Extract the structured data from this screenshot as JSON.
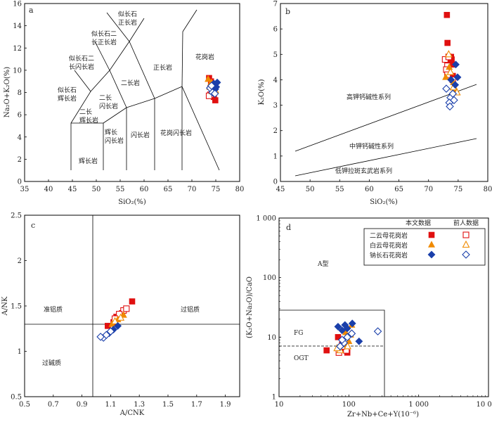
{
  "legend": {
    "col_this": "本文数据",
    "col_prev": "前人数据",
    "rows": [
      {
        "label": "二云母花岗岩",
        "color": "#e01010",
        "marker": "square"
      },
      {
        "label": "白云母花岗岩",
        "color": "#f08a00",
        "marker": "triangle"
      },
      {
        "label": "钠长石花岗岩",
        "color": "#1a3faa",
        "marker": "diamond"
      }
    ]
  },
  "colors": {
    "two_mica": "#e01010",
    "muscovite": "#f08a00",
    "albite": "#1a3faa"
  },
  "chart_data": [
    {
      "id": "a",
      "type": "scatter",
      "panel_label": "a",
      "xlabel": "SiO₂(%)",
      "ylabel": "Na₂O+K₂O(%)",
      "xlim": [
        35,
        80
      ],
      "ylim": [
        0,
        16
      ],
      "xticks": [
        35,
        40,
        45,
        50,
        55,
        60,
        65,
        70,
        75,
        80
      ],
      "yticks": [
        0,
        2,
        4,
        6,
        8,
        10,
        12,
        14,
        16
      ],
      "field_labels": [
        "似长石正长岩",
        "似长石二长正长岩",
        "似长石二长闪长岩",
        "似长石辉长岩",
        "二长辉长岩",
        "二长闪长岩",
        "二长岩",
        "正长岩",
        "花岗岩",
        "辉长岩",
        "辉长闪长岩",
        "闪长岩",
        "花岗闪长岩"
      ],
      "series": [
        {
          "name": "二云母花岗岩",
          "group": "this",
          "points": [
            [
              73.6,
              9.3
            ],
            [
              74.6,
              7.6
            ],
            [
              74.9,
              7.3
            ],
            [
              74.0,
              9.0
            ],
            [
              74.3,
              8.4
            ]
          ]
        },
        {
          "name": "二云母花岗岩",
          "group": "previous",
          "points": [
            [
              73.9,
              7.8
            ],
            [
              74.4,
              8.0
            ],
            [
              73.6,
              7.7
            ],
            [
              74.7,
              8.3
            ],
            [
              74.2,
              8.6
            ]
          ]
        },
        {
          "name": "白云母花岗岩",
          "group": "this",
          "points": [
            [
              73.4,
              9.2
            ],
            [
              74.1,
              8.9
            ],
            [
              74.6,
              8.6
            ],
            [
              73.9,
              8.8
            ]
          ]
        },
        {
          "name": "白云母花岗岩",
          "group": "previous",
          "points": [
            [
              74.3,
              8.1
            ],
            [
              74.9,
              8.2
            ],
            [
              73.8,
              8.5
            ]
          ]
        },
        {
          "name": "钠长石花岗岩",
          "group": "this",
          "points": [
            [
              74.6,
              8.8
            ],
            [
              75.1,
              8.5
            ],
            [
              74.9,
              8.3
            ],
            [
              74.4,
              8.7
            ],
            [
              75.3,
              8.9
            ]
          ]
        },
        {
          "name": "钠长石花岗岩",
          "group": "previous",
          "points": [
            [
              73.8,
              8.4
            ],
            [
              74.3,
              8.0
            ],
            [
              74.8,
              7.9
            ],
            [
              74.1,
              8.6
            ]
          ]
        }
      ]
    },
    {
      "id": "b",
      "type": "scatter",
      "panel_label": "b",
      "xlabel": "SiO₂(%)",
      "ylabel": "K₂O(%)",
      "xlim": [
        45,
        80
      ],
      "ylim": [
        0,
        7
      ],
      "xticks": [
        45,
        50,
        55,
        60,
        65,
        70,
        75,
        80
      ],
      "yticks": [
        0,
        1,
        2,
        3,
        4,
        5,
        6,
        7
      ],
      "field_labels": [
        "高钾钙碱性系列",
        "中钾钙碱性系列",
        "低钾拉斑玄武岩系列"
      ],
      "series": [
        {
          "name": "二云母花岗岩",
          "group": "this",
          "points": [
            [
              73.1,
              6.55
            ],
            [
              73.2,
              5.45
            ],
            [
              73.8,
              4.9
            ],
            [
              74.2,
              4.6
            ],
            [
              74.1,
              4.15
            ],
            [
              73.9,
              4.8
            ],
            [
              73.5,
              4.7
            ]
          ]
        },
        {
          "name": "二云母花岗岩",
          "group": "previous",
          "points": [
            [
              72.8,
              4.8
            ],
            [
              73.2,
              4.55
            ],
            [
              73.0,
              4.4
            ],
            [
              73.4,
              4.9
            ],
            [
              74.1,
              4.0
            ],
            [
              73.2,
              4.2
            ]
          ]
        },
        {
          "name": "白云母花岗岩",
          "group": "this",
          "points": [
            [
              72.9,
              4.1
            ],
            [
              73.5,
              4.5
            ],
            [
              74.2,
              3.9
            ],
            [
              74.6,
              3.6
            ]
          ]
        },
        {
          "name": "白云母花岗岩",
          "group": "previous",
          "points": [
            [
              73.4,
              5.0
            ],
            [
              73.7,
              4.3
            ],
            [
              74.2,
              3.7
            ],
            [
              74.8,
              3.5
            ]
          ]
        },
        {
          "name": "钠长石花岗岩",
          "group": "this",
          "points": [
            [
              74.6,
              4.6
            ],
            [
              74.9,
              4.1
            ],
            [
              74.5,
              3.8
            ],
            [
              73.8,
              4.0
            ]
          ]
        },
        {
          "name": "钠长石花岗岩",
          "group": "previous",
          "points": [
            [
              73.0,
              3.65
            ],
            [
              73.7,
              3.3
            ],
            [
              74.3,
              3.2
            ],
            [
              73.5,
              3.1
            ],
            [
              73.6,
              2.95
            ],
            [
              74.1,
              3.45
            ]
          ]
        }
      ]
    },
    {
      "id": "c",
      "type": "scatter",
      "panel_label": "c",
      "xlabel": "A/CNK",
      "ylabel": "A/NK",
      "xlim": [
        0.5,
        2.0
      ],
      "ylim": [
        0.5,
        2.5
      ],
      "xticks": [
        0.5,
        0.7,
        0.9,
        1.1,
        1.3,
        1.5,
        1.7,
        1.9
      ],
      "yticks": [
        0.5,
        1.0,
        1.5,
        2.0,
        2.5
      ],
      "field_labels": [
        "准铝质",
        "过铝质",
        "过碱质"
      ],
      "series": [
        {
          "name": "二云母花岗岩",
          "group": "this",
          "points": [
            [
              1.25,
              1.55
            ],
            [
              1.14,
              1.38
            ],
            [
              1.08,
              1.28
            ],
            [
              1.18,
              1.42
            ],
            [
              1.12,
              1.32
            ]
          ]
        },
        {
          "name": "二云母花岗岩",
          "group": "previous",
          "points": [
            [
              1.19,
              1.45
            ],
            [
              1.16,
              1.41
            ],
            [
              1.21,
              1.47
            ],
            [
              1.13,
              1.36
            ]
          ]
        },
        {
          "name": "白云母花岗岩",
          "group": "this",
          "points": [
            [
              1.15,
              1.35
            ],
            [
              1.19,
              1.4
            ],
            [
              1.11,
              1.3
            ]
          ]
        },
        {
          "name": "白云母花岗岩",
          "group": "previous",
          "points": [
            [
              1.17,
              1.37
            ],
            [
              1.13,
              1.33
            ]
          ]
        },
        {
          "name": "钠长石花岗岩",
          "group": "this",
          "points": [
            [
              1.12,
              1.24
            ],
            [
              1.09,
              1.2
            ],
            [
              1.15,
              1.28
            ]
          ]
        },
        {
          "name": "钠长石花岗岩",
          "group": "previous",
          "points": [
            [
              1.05,
              1.15
            ],
            [
              1.07,
              1.18
            ],
            [
              1.1,
              1.22
            ],
            [
              1.03,
              1.16
            ]
          ]
        }
      ]
    },
    {
      "id": "d",
      "type": "scatter",
      "panel_label": "d",
      "xlabel": "Zr+Nb+Ce+Y(10⁻⁶)",
      "ylabel": "(K₂O+Na₂O)/CaO",
      "xscale": "log",
      "yscale": "log",
      "xlim": [
        10,
        10000
      ],
      "ylim": [
        1,
        1000
      ],
      "xticks": [
        10,
        100,
        1000,
        10000
      ],
      "xtick_labels": [
        "10",
        "100",
        "1 000",
        "10 000"
      ],
      "yticks": [
        1,
        10,
        100,
        1000
      ],
      "ytick_labels": [
        "1",
        "10",
        "100",
        "1 000"
      ],
      "field_labels": [
        "A型",
        "FG",
        "OGT"
      ],
      "series": [
        {
          "name": "二云母花岗岩",
          "group": "this",
          "points": [
            [
              48,
              6
            ],
            [
              70,
              10
            ],
            [
              88,
              6.5
            ],
            [
              95,
              5.5
            ],
            [
              80,
              7.5
            ]
          ]
        },
        {
          "name": "二云母花岗岩",
          "group": "previous",
          "points": [
            [
              72,
              5.5
            ],
            [
              92,
              6
            ],
            [
              80,
              7
            ]
          ]
        },
        {
          "name": "白云母花岗岩",
          "group": "this",
          "points": [
            [
              100,
              8.5
            ],
            [
              90,
              12
            ],
            [
              110,
              16
            ],
            [
              85,
              7.5
            ]
          ]
        },
        {
          "name": "白云母花岗岩",
          "group": "previous",
          "points": [
            [
              75,
              6
            ],
            [
              96,
              7
            ],
            [
              105,
              11
            ],
            [
              68,
              6.5
            ]
          ]
        },
        {
          "name": "钠长石花岗岩",
          "group": "this",
          "points": [
            [
              70,
              15
            ],
            [
              80,
              13
            ],
            [
              112,
              17
            ],
            [
              140,
              8.5
            ],
            [
              88,
              16
            ],
            [
              95,
              14
            ]
          ]
        },
        {
          "name": "钠长石花岗岩",
          "group": "previous",
          "points": [
            [
              260,
              12.5
            ],
            [
              75,
              7
            ],
            [
              85,
              8
            ],
            [
              95,
              10
            ],
            [
              110,
              11.5
            ],
            [
              80,
              9
            ]
          ]
        }
      ]
    }
  ]
}
